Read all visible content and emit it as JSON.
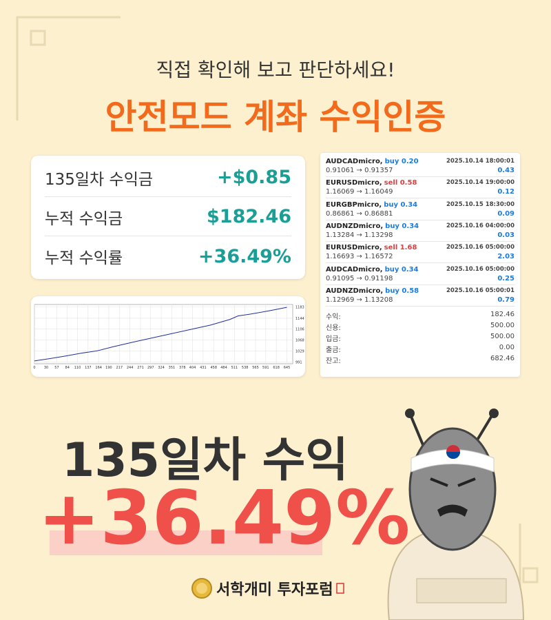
{
  "header": {
    "subtitle": "직접 확인해 보고 판단하세요!",
    "title": "안전모드 계좌 수익인증"
  },
  "stats": [
    {
      "label": "135일차 수익금",
      "value": "+$0.85"
    },
    {
      "label": "누적 수익금",
      "value": "$182.46"
    },
    {
      "label": "누적 수익률",
      "value": "+36.49%"
    }
  ],
  "equity_chart": {
    "type": "line",
    "color": "#1f2f9e",
    "grid": true,
    "x": [
      0,
      40,
      80,
      120,
      160,
      200,
      250,
      300,
      350,
      400,
      450,
      500,
      520,
      550,
      600,
      645
    ],
    "values": [
      995,
      1003,
      1012,
      1022,
      1030,
      1044,
      1060,
      1075,
      1090,
      1105,
      1120,
      1140,
      1152,
      1158,
      1170,
      1182
    ],
    "xlim": [
      0,
      660
    ],
    "ylim": [
      985,
      1192
    ],
    "xticks": [
      0,
      30,
      57,
      84,
      110,
      137,
      164,
      190,
      217,
      244,
      271,
      297,
      324,
      351,
      378,
      404,
      431,
      458,
      484,
      511,
      538,
      565,
      591,
      618,
      645
    ],
    "yticks": [
      991,
      1029,
      1068,
      1106,
      1144,
      1183
    ]
  },
  "trades": [
    {
      "symbol": "AUDCADmicro,",
      "side": "buy 0.20",
      "color": "#1a7be0",
      "time": "2025.10.14 18:00:01",
      "prices": "0.91061 → 0.91357",
      "profit": "0.43"
    },
    {
      "symbol": "EURUSDmicro,",
      "side": "sell 0.58",
      "color": "#e23b3b",
      "time": "2025.10.14 19:00:00",
      "prices": "1.16069 → 1.16049",
      "profit": "0.12"
    },
    {
      "symbol": "EURGBPmicro,",
      "side": "buy 0.34",
      "color": "#1a7be0",
      "time": "2025.10.15 18:30:00",
      "prices": "0.86861 → 0.86881",
      "profit": "0.09"
    },
    {
      "symbol": "AUDNZDmicro,",
      "side": "buy 0.34",
      "color": "#1a7be0",
      "time": "2025.10.16 04:00:00",
      "prices": "1.13284 → 1.13298",
      "profit": "0.03"
    },
    {
      "symbol": "EURUSDmicro,",
      "side": "sell 1.68",
      "color": "#e23b3b",
      "time": "2025.10.16 05:00:00",
      "prices": "1.16693 → 1.16572",
      "profit": "2.03"
    },
    {
      "symbol": "AUDCADmicro,",
      "side": "buy 0.34",
      "color": "#1a7be0",
      "time": "2025.10.16 05:00:00",
      "prices": "0.91095 → 0.91198",
      "profit": "0.25"
    },
    {
      "symbol": "AUDNZDmicro,",
      "side": "buy 0.58",
      "color": "#1a7be0",
      "time": "2025.10.16 05:00:01",
      "prices": "1.12969 → 1.13208",
      "profit": "0.79"
    }
  ],
  "summary": [
    {
      "label": "수익:",
      "value": "182.46"
    },
    {
      "label": "신용:",
      "value": "500.00"
    },
    {
      "label": "입금:",
      "value": "500.00"
    },
    {
      "label": "출금:",
      "value": "0.00"
    },
    {
      "label": "잔고:",
      "value": "682.46"
    }
  ],
  "headline": {
    "days": "135일차 수익",
    "percent": "+36.49%"
  },
  "footer": {
    "brand": "서학개미 투자포럼"
  }
}
